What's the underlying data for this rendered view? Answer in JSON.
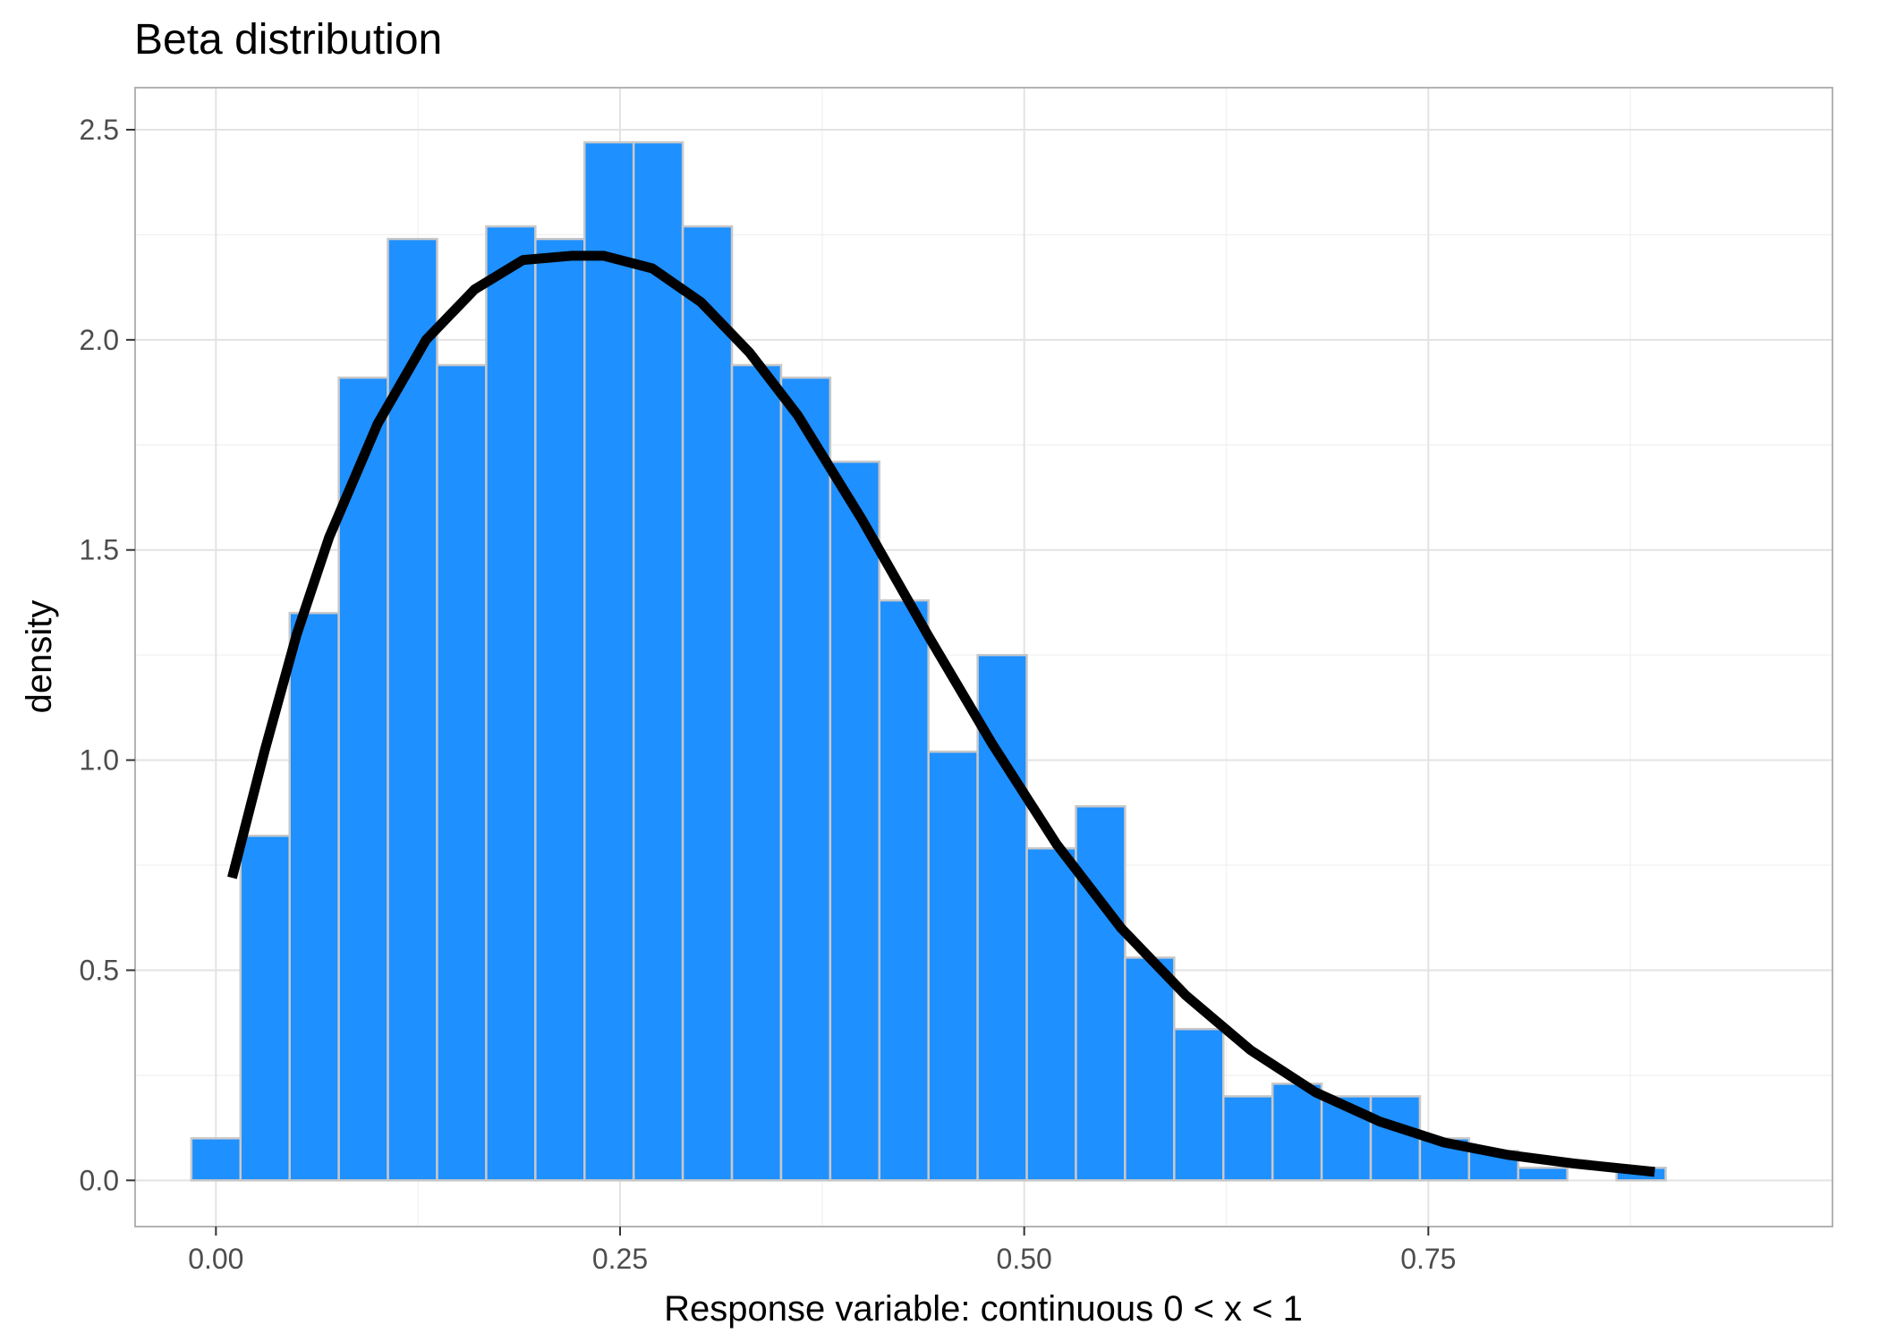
{
  "chart_data": {
    "type": "bar",
    "title": "Beta distribution",
    "xlabel": "Response variable: continuous 0 < x < 1",
    "ylabel": "density",
    "xlim": [
      -0.05,
      1.0
    ],
    "ylim": [
      -0.11,
      2.6
    ],
    "grid": true,
    "x_ticks": [
      0.0,
      0.25,
      0.5,
      0.75
    ],
    "x_tick_labels": [
      "0.00",
      "0.25",
      "0.50",
      "0.75"
    ],
    "y_ticks": [
      0.0,
      0.5,
      1.0,
      1.5,
      2.0,
      2.5
    ],
    "y_tick_labels": [
      "0.0",
      "0.5",
      "1.0",
      "1.5",
      "2.0",
      "2.5"
    ],
    "histogram": {
      "bin_start": -0.0152,
      "bin_width": 0.0304,
      "fill": "#1E90FF",
      "outline": "#C8C8C8",
      "values": [
        0.1,
        0.82,
        1.35,
        1.91,
        2.24,
        1.94,
        2.27,
        2.24,
        2.47,
        2.47,
        2.27,
        1.94,
        1.91,
        1.71,
        1.38,
        1.02,
        1.25,
        0.79,
        0.89,
        0.53,
        0.36,
        0.2,
        0.23,
        0.2,
        0.2,
        0.1,
        0.07,
        0.03,
        0.0,
        0.03
      ]
    },
    "density_curve": {
      "color": "#000000",
      "x": [
        0.01,
        0.03,
        0.05,
        0.07,
        0.1,
        0.13,
        0.16,
        0.19,
        0.22,
        0.24,
        0.27,
        0.3,
        0.33,
        0.36,
        0.4,
        0.44,
        0.48,
        0.52,
        0.56,
        0.6,
        0.64,
        0.68,
        0.72,
        0.76,
        0.8,
        0.84,
        0.89
      ],
      "y": [
        0.72,
        1.02,
        1.3,
        1.53,
        1.8,
        2.0,
        2.12,
        2.19,
        2.2,
        2.2,
        2.17,
        2.09,
        1.97,
        1.82,
        1.57,
        1.3,
        1.04,
        0.8,
        0.6,
        0.44,
        0.31,
        0.21,
        0.14,
        0.09,
        0.06,
        0.04,
        0.02
      ]
    }
  }
}
